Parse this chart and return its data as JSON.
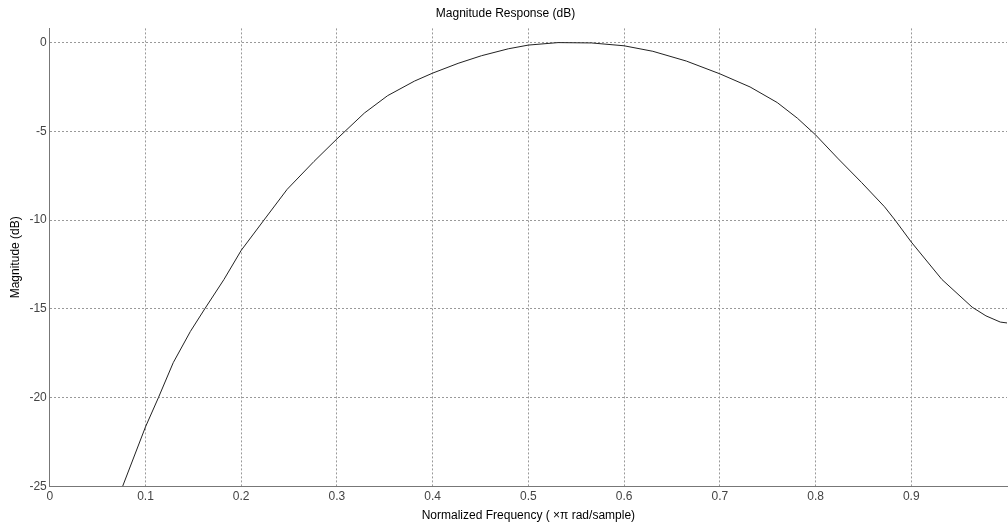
{
  "chart_data": {
    "type": "line",
    "title": "Magnitude Response (dB)",
    "xlabel": "Normalized Frequency ( ×π rad/sample)",
    "ylabel": "Magnitude (dB)",
    "x": [
      0.0762,
      0.1,
      0.1136,
      0.129,
      0.1469,
      0.162,
      0.182,
      0.2,
      0.2238,
      0.248,
      0.276,
      0.3,
      0.3287,
      0.353,
      0.381,
      0.4,
      0.4266,
      0.451,
      0.479,
      0.5,
      0.531,
      0.566,
      0.6,
      0.63,
      0.665,
      0.7,
      0.7316,
      0.76,
      0.781,
      0.8,
      0.823,
      0.848,
      0.872,
      0.883,
      0.9,
      0.932,
      0.9636,
      0.978,
      0.993,
      1.0
    ],
    "series": [
      {
        "color": "#222222",
        "values": [
          -25,
          -21.66,
          -20,
          -18.04,
          -16.28,
          -15,
          -13.35,
          -11.71,
          -10,
          -8.27,
          -6.7,
          -5.43,
          -3.97,
          -2.99,
          -2.17,
          -1.72,
          -1.17,
          -0.74,
          -0.35,
          -0.14,
          0,
          -0.02,
          -0.18,
          -0.49,
          -1.04,
          -1.76,
          -2.5,
          -3.38,
          -4.26,
          -5.2,
          -6.51,
          -7.88,
          -9.25,
          -10,
          -11.24,
          -13.35,
          -14.91,
          -15.4,
          -15.75,
          -15.8
        ]
      }
    ],
    "xlim": [
      0,
      1
    ],
    "ylim": [
      -25,
      0.8
    ],
    "xticks": [
      0,
      0.1,
      0.2,
      0.3,
      0.4,
      0.5,
      0.6,
      0.7,
      0.8,
      0.9
    ],
    "yticks": [
      0,
      -5,
      -10,
      -15,
      -20,
      -25
    ],
    "grid": true,
    "legend": false,
    "marker": "none",
    "line_style": "solid"
  }
}
